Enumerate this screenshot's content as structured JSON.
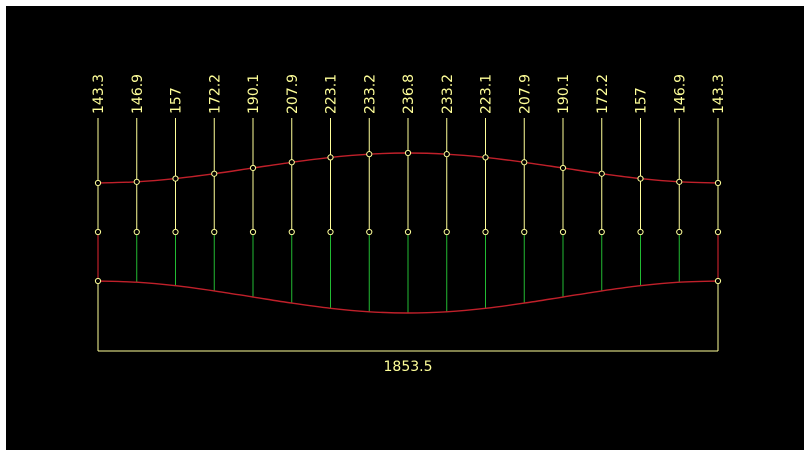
{
  "diagram": {
    "title": "",
    "colors": {
      "background": "#000000",
      "dimension_line": "#ffff99",
      "curve": "#c0202a",
      "stud": "#22bb33",
      "node_fill": "#000000",
      "node_stroke": "#ffff99",
      "label": "#ffff99",
      "total_label": "#ffff99"
    },
    "heights": [
      "143.3",
      "146.9",
      "157",
      "172.2",
      "190.1",
      "207.9",
      "223.1",
      "233.2",
      "236.8",
      "233.2",
      "223.1",
      "207.9",
      "190.1",
      "172.2",
      "157",
      "146.9",
      "143.3"
    ],
    "total_length": "1853.5"
  }
}
